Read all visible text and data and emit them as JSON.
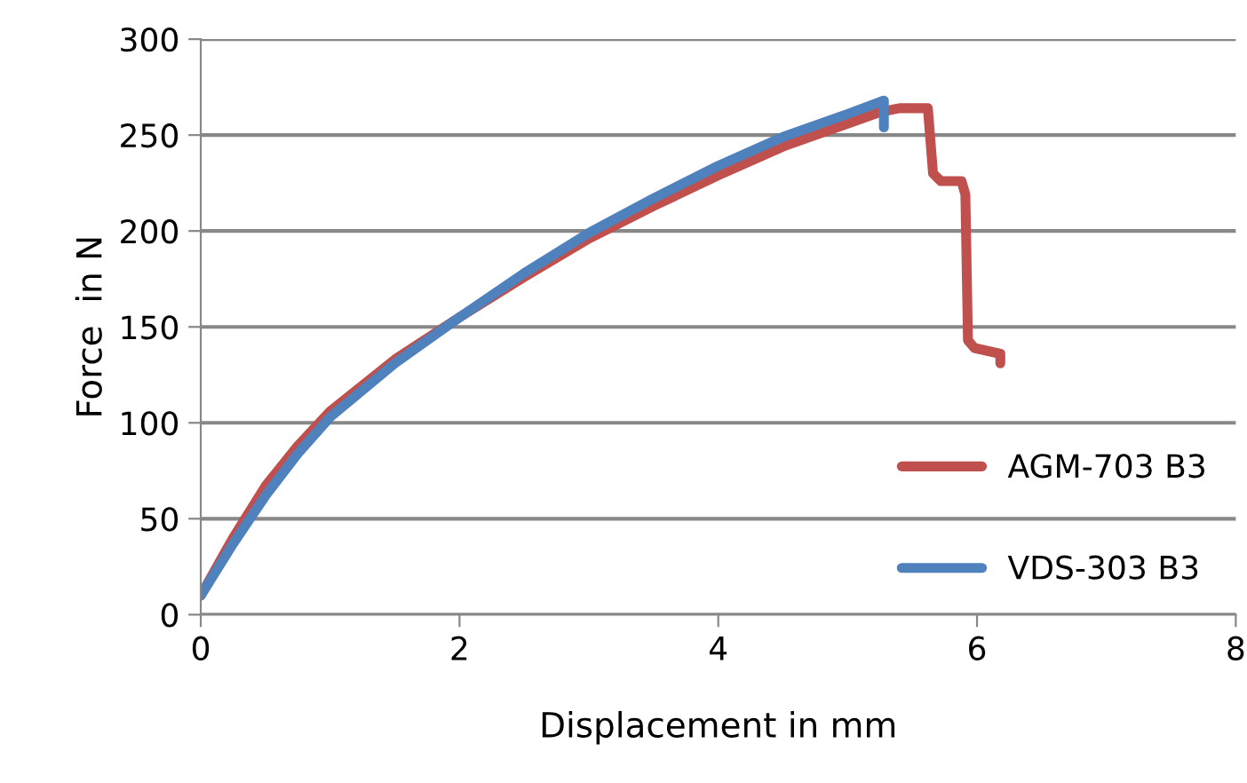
{
  "chart_data": {
    "type": "line",
    "xlabel": "Displacement in mm",
    "ylabel": "Force  in N",
    "xlim": [
      0,
      8
    ],
    "xticks": [
      0,
      2,
      4,
      6,
      8
    ],
    "ylim": [
      0,
      300
    ],
    "yticks": [
      0,
      50,
      100,
      150,
      200,
      250,
      300
    ],
    "grid": "y",
    "legend": "bottom right",
    "marker": "none",
    "line_style": "solid",
    "series": [
      {
        "name": "AGM-703 B3",
        "color": "#c0504d",
        "x": [
          0,
          0.25,
          0.5,
          0.75,
          1.0,
          1.5,
          2.0,
          2.5,
          3.0,
          3.5,
          4.0,
          4.5,
          5.0,
          5.25,
          5.4,
          5.62,
          5.66,
          5.72,
          5.88,
          5.91,
          5.93,
          5.98,
          6.18,
          6.18
        ],
        "values": [
          10,
          40,
          67,
          88,
          106,
          133,
          155,
          176,
          196,
          213,
          229,
          244,
          256,
          262,
          264,
          264,
          230,
          226,
          226,
          219,
          143,
          139,
          136,
          131
        ]
      },
      {
        "name": "VDS-303 B3",
        "color": "#4f81bd",
        "x": [
          0,
          0.25,
          0.5,
          0.75,
          1.0,
          1.5,
          2.0,
          2.5,
          3.0,
          3.5,
          4.0,
          4.5,
          5.0,
          5.28,
          5.28
        ],
        "values": [
          10,
          37,
          62,
          84,
          103,
          131,
          155,
          178,
          199,
          217,
          234,
          249,
          261,
          268,
          254
        ]
      }
    ]
  }
}
